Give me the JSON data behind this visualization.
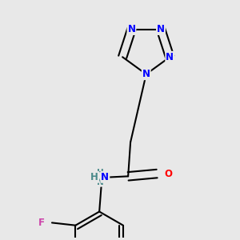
{
  "background_color": "#e8e8e8",
  "atom_colors": {
    "N": "#0000FF",
    "O": "#FF0000",
    "F": "#CC44AA",
    "C": "#000000",
    "H": "#4A8A8A"
  },
  "bond_color": "#000000",
  "bond_width": 1.5,
  "figsize": [
    3.0,
    3.0
  ],
  "dpi": 100
}
